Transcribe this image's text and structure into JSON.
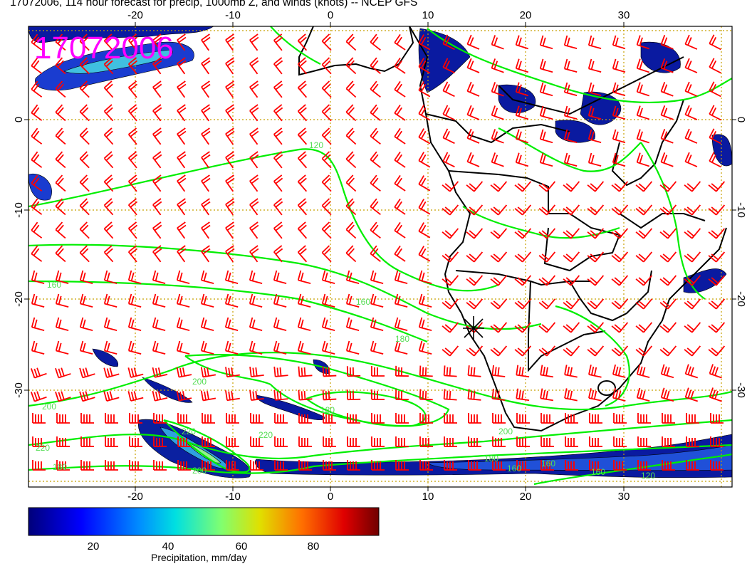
{
  "title": "17072006, 114 hour forecast for precip, 1000mb Z, and winds (knots) -- NCEP GFS",
  "stamp": "17072006",
  "lon_ticks": [
    "-20",
    "-10",
    "0",
    "10",
    "20",
    "30"
  ],
  "lat_ticks": [
    "0",
    "-10",
    "-20",
    "-30"
  ],
  "colorbar": {
    "label": "Precipitation, mm/day",
    "ticks": [
      "20",
      "40",
      "60",
      "80"
    ],
    "colors": [
      "#00008b",
      "#0000ff",
      "#0080ff",
      "#00ffff",
      "#80ff80",
      "#ffff00",
      "#ff8000",
      "#ff0000",
      "#800000"
    ]
  },
  "contour_labels": [
    "120",
    "160",
    "160",
    "180",
    "180",
    "200",
    "200",
    "220",
    "220",
    "220",
    "200",
    "180",
    "200",
    "180",
    "160",
    "160",
    "160",
    "120"
  ],
  "colors": {
    "land_line": "#000000",
    "contour": "#00ee00",
    "barb": "#ff0000",
    "grid": "#c8a000",
    "stamp": "#ff00ff"
  }
}
